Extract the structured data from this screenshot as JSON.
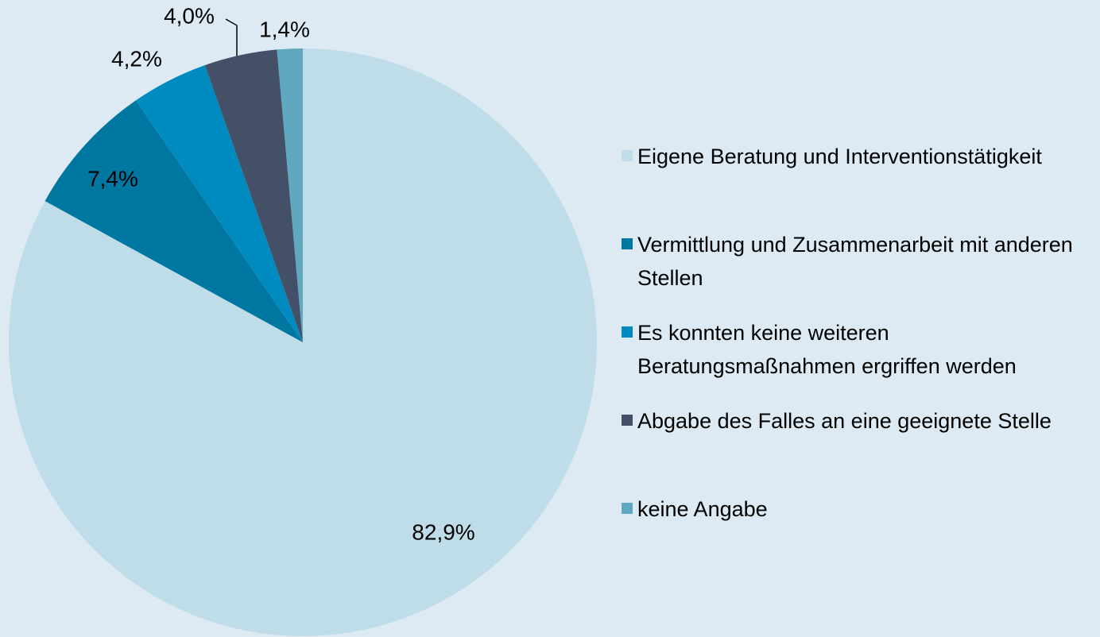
{
  "chart_data": {
    "type": "pie",
    "categories": [
      "Eigene Beratung und Interventionstätigkeit",
      "Vermittlung und Zusammenarbeit mit anderen Stellen",
      "Es konnten keine weiteren Beratungsmaßnahmen ergriffen werden",
      "Abgabe des Falles an eine geeignete Stelle",
      "keine Angabe"
    ],
    "values": [
      82.9,
      7.4,
      4.2,
      4.0,
      1.4
    ],
    "value_labels": [
      "82,9%",
      "7,4%",
      "4,2%",
      "4,0%",
      "1,4%"
    ],
    "colors": [
      "#bfdde8",
      "#0077a0",
      "#008bc0",
      "#445068",
      "#5fa8bf"
    ],
    "legend": "right"
  }
}
